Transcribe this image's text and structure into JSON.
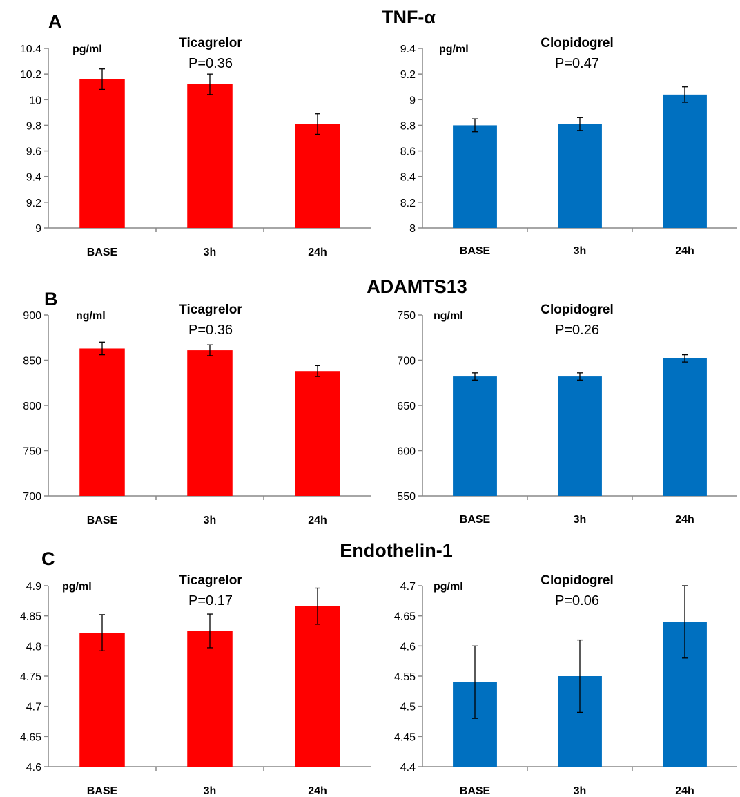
{
  "rows": [
    {
      "letter": "A",
      "title": "TNF-α",
      "charts": [
        {
          "drug": "Ticagrelor",
          "pvalue": "P=0.36",
          "chart_data": {
            "type": "bar",
            "title": "Ticagrelor",
            "ylabel": "pg/ml",
            "categories": [
              "BASE",
              "3h",
              "24h"
            ],
            "values": [
              10.16,
              10.12,
              9.81
            ],
            "errors": [
              0.08,
              0.08,
              0.08
            ],
            "ylim": [
              9,
              10.4
            ],
            "yticks": [
              "9",
              "9.2",
              "9.4",
              "9.6",
              "9.8",
              "10",
              "10.2",
              "10.4"
            ],
            "color": "#ff0000"
          }
        },
        {
          "drug": "Clopidogrel",
          "pvalue": "P=0.47",
          "chart_data": {
            "type": "bar",
            "title": "Clopidogrel",
            "ylabel": "pg/ml",
            "categories": [
              "BASE",
              "3h",
              "24h"
            ],
            "values": [
              8.8,
              8.81,
              9.04
            ],
            "errors": [
              0.05,
              0.05,
              0.06
            ],
            "ylim": [
              8,
              9.4
            ],
            "yticks": [
              "8",
              "8.2",
              "8.4",
              "8.6",
              "8.8",
              "9",
              "9.2",
              "9.4"
            ],
            "color": "#0070c0"
          }
        }
      ]
    },
    {
      "letter": "B",
      "title": "ADAMTS13",
      "charts": [
        {
          "drug": "Ticagrelor",
          "pvalue": "P=0.36",
          "chart_data": {
            "type": "bar",
            "title": "Ticagrelor",
            "ylabel": "ng/ml",
            "categories": [
              "BASE",
              "3h",
              "24h"
            ],
            "values": [
              863,
              861,
              838
            ],
            "errors": [
              7,
              6,
              6
            ],
            "ylim": [
              700,
              900
            ],
            "yticks": [
              "700",
              "750",
              "800",
              "850",
              "900"
            ],
            "color": "#ff0000"
          }
        },
        {
          "drug": "Clopidogrel",
          "pvalue": "P=0.26",
          "chart_data": {
            "type": "bar",
            "title": "Clopidogrel",
            "ylabel": "ng/ml",
            "categories": [
              "BASE",
              "3h",
              "24h"
            ],
            "values": [
              682,
              682,
              702
            ],
            "errors": [
              4,
              4,
              4
            ],
            "ylim": [
              550,
              750
            ],
            "yticks": [
              "550",
              "600",
              "650",
              "700",
              "750"
            ],
            "color": "#0070c0"
          }
        }
      ]
    },
    {
      "letter": "C",
      "title": "Endothelin-1",
      "charts": [
        {
          "drug": "Ticagrelor",
          "pvalue": "P=0.17",
          "chart_data": {
            "type": "bar",
            "title": "Ticagrelor",
            "ylabel": "pg/ml",
            "categories": [
              "BASE",
              "3h",
              "24h"
            ],
            "values": [
              4.822,
              4.825,
              4.866
            ],
            "errors": [
              0.03,
              0.028,
              0.03
            ],
            "ylim": [
              4.6,
              4.9
            ],
            "yticks": [
              "4.6",
              "4.65",
              "4.7",
              "4.75",
              "4.8",
              "4.85",
              "4.9"
            ],
            "color": "#ff0000"
          }
        },
        {
          "drug": "Clopidogrel",
          "pvalue": "P=0.06",
          "chart_data": {
            "type": "bar",
            "title": "Clopidogrel",
            "ylabel": "pg/ml",
            "categories": [
              "BASE",
              "3h",
              "24h"
            ],
            "values": [
              4.54,
              4.55,
              4.64
            ],
            "errors": [
              0.06,
              0.06,
              0.06
            ],
            "ylim": [
              4.4,
              4.7
            ],
            "yticks": [
              "4.4",
              "4.45",
              "4.5",
              "4.55",
              "4.6",
              "4.65",
              "4.7"
            ],
            "color": "#0070c0"
          }
        }
      ]
    }
  ]
}
